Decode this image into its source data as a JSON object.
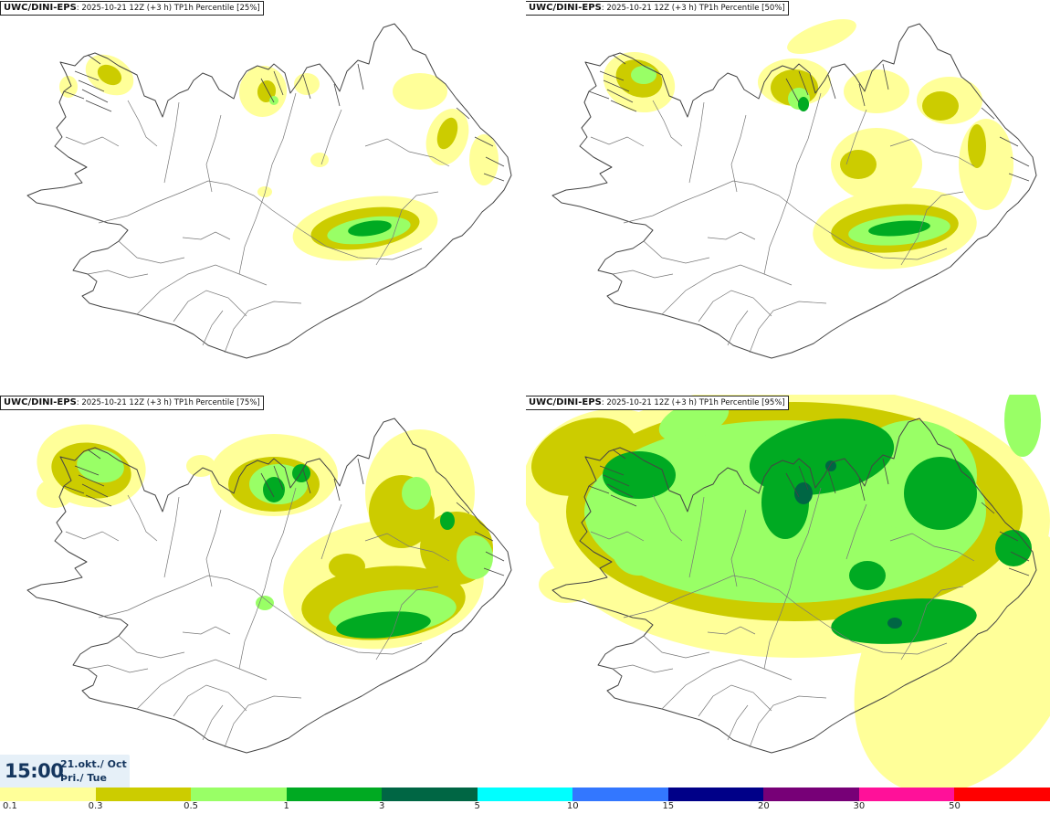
{
  "panels": [
    {
      "model": "UWC/DINI-EPS",
      "run": ": 2025-10-21 12Z (+3 h)",
      "field": "TP1h Percentile [25%]",
      "level": 0
    },
    {
      "model": "UWC/DINI-EPS",
      "run": ": 2025-10-21 12Z (+3 h)",
      "field": "TP1h Percentile [50%]",
      "level": 1
    },
    {
      "model": "UWC/DINI-EPS",
      "run": ": 2025-10-21 12Z (+3 h)",
      "field": "TP1h Percentile [75%]",
      "level": 2
    },
    {
      "model": "UWC/DINI-EPS",
      "run": ": 2025-10-21 12Z (+3 h)",
      "field": "TP1h Percentile [95%]",
      "level": 3
    }
  ],
  "time": {
    "clock": "15:00",
    "date": "21.okt./ Oct",
    "weekday": "Þri./ Tue"
  },
  "legend": {
    "thresholds": [
      "0.1",
      "0.3",
      "0.5",
      "1",
      "3",
      "5",
      "10",
      "15",
      "20",
      "30",
      "50"
    ],
    "colors": [
      "#ffff99",
      "#cccc00",
      "#99ff66",
      "#00aa22",
      "#006644",
      "#00ffff",
      "#3377ff",
      "#000088",
      "#770077",
      "#ff1199",
      "#ff0000"
    ]
  }
}
